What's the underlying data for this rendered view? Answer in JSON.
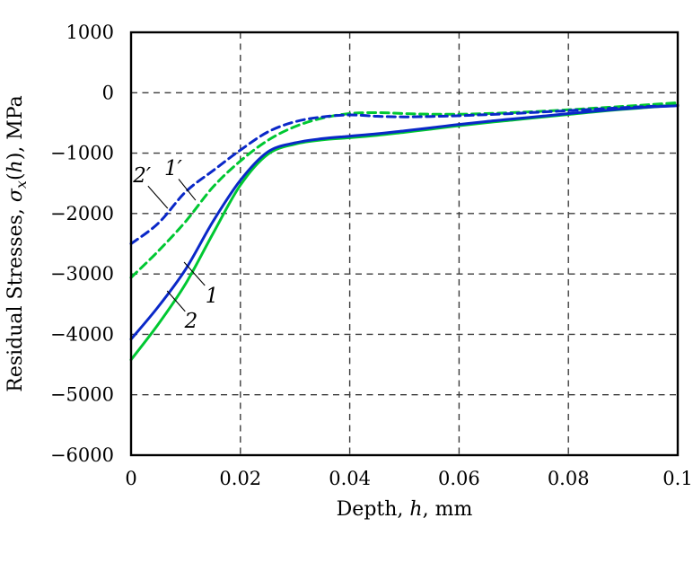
{
  "colors": {
    "blue": "#0a28c8",
    "green": "#00c832",
    "grid": "#3c3c3c",
    "frame": "#000000",
    "annotation": "#000000",
    "background": "#ffffff"
  },
  "chart_data": {
    "type": "line",
    "title": "",
    "xlabel": "Depth, h, mm",
    "ylabel": "Residual Stresses, σx(h), MPa",
    "xlabel_parts": [
      {
        "text": "Depth, "
      },
      {
        "text": "h",
        "italic": true
      },
      {
        "text": ", mm"
      }
    ],
    "ylabel_parts": [
      {
        "text": "Residual Stresses, "
      },
      {
        "text": "σ",
        "italic": true
      },
      {
        "text": "x",
        "italic": true,
        "sub": true
      },
      {
        "text": "("
      },
      {
        "text": "h",
        "italic": true
      },
      {
        "text": "), MPa"
      }
    ],
    "xlim": [
      0,
      0.1
    ],
    "ylim": [
      -6000,
      1000
    ],
    "grid": true,
    "legend": "none",
    "xticks": [
      {
        "v": 0,
        "label": "0"
      },
      {
        "v": 0.02,
        "label": "0.02"
      },
      {
        "v": 0.04,
        "label": "0.04"
      },
      {
        "v": 0.06,
        "label": "0.06"
      },
      {
        "v": 0.08,
        "label": "0.08"
      },
      {
        "v": 0.1,
        "label": "0.1"
      }
    ],
    "yticks": [
      {
        "v": 1000,
        "label": "1000"
      },
      {
        "v": 0,
        "label": "0"
      },
      {
        "v": -1000,
        "label": "−1000"
      },
      {
        "v": -2000,
        "label": "−2000"
      },
      {
        "v": -3000,
        "label": "−3000"
      },
      {
        "v": -4000,
        "label": "−4000"
      },
      {
        "v": -5000,
        "label": "−5000"
      },
      {
        "v": -6000,
        "label": "−6000"
      }
    ],
    "grid_x": [
      0.02,
      0.04,
      0.06,
      0.08
    ],
    "grid_y": [
      0,
      -1000,
      -2000,
      -3000,
      -4000,
      -5000
    ],
    "x": [
      0,
      0.005,
      0.01,
      0.015,
      0.02,
      0.025,
      0.03,
      0.035,
      0.04,
      0.045,
      0.05,
      0.055,
      0.06,
      0.065,
      0.07,
      0.075,
      0.08,
      0.085,
      0.09,
      0.095,
      0.1
    ],
    "series": [
      {
        "key": "curve-1-prime",
        "name": "1′",
        "color": "#00c832",
        "style": "dashed",
        "values": [
          -3060,
          -2620,
          -2130,
          -1560,
          -1130,
          -790,
          -560,
          -420,
          -345,
          -330,
          -345,
          -355,
          -355,
          -345,
          -328,
          -308,
          -283,
          -255,
          -226,
          -196,
          -165
        ]
      },
      {
        "key": "curve-2-prime",
        "name": "2′",
        "color": "#0a28c8",
        "style": "dashed",
        "values": [
          -2500,
          -2160,
          -1640,
          -1290,
          -950,
          -650,
          -480,
          -400,
          -368,
          -390,
          -400,
          -393,
          -380,
          -363,
          -343,
          -320,
          -296,
          -271,
          -247,
          -226,
          -210
        ]
      },
      {
        "key": "curve-1",
        "name": "1",
        "color": "#00c832",
        "style": "solid",
        "values": [
          -4420,
          -3830,
          -3160,
          -2330,
          -1530,
          -1020,
          -850,
          -780,
          -745,
          -705,
          -655,
          -600,
          -545,
          -495,
          -450,
          -405,
          -360,
          -315,
          -275,
          -240,
          -205
        ]
      },
      {
        "key": "curve-2",
        "name": "2",
        "color": "#0a28c8",
        "style": "solid",
        "values": [
          -4080,
          -3540,
          -2920,
          -2130,
          -1450,
          -980,
          -830,
          -760,
          -720,
          -680,
          -630,
          -578,
          -525,
          -478,
          -432,
          -390,
          -345,
          -305,
          -268,
          -235,
          -215
        ]
      }
    ],
    "annotations": [
      {
        "key": "label-2-prime",
        "text": "2′",
        "target": "curve-2-prime",
        "x": 0.002,
        "y": -1363,
        "leader": [
          [
            0.0031,
            -1545
          ],
          [
            0.0067,
            -1915
          ]
        ]
      },
      {
        "key": "label-1-prime",
        "text": "1′",
        "target": "curve-1-prime",
        "x": 0.0077,
        "y": -1244,
        "leader": [
          [
            0.0087,
            -1430
          ],
          [
            0.0118,
            -1780
          ]
        ]
      },
      {
        "key": "label-1",
        "text": "1",
        "target": "curve-1",
        "x": 0.0148,
        "y": -3354,
        "leader": [
          [
            0.0135,
            -3191
          ],
          [
            0.0097,
            -2804
          ]
        ]
      },
      {
        "key": "label-2",
        "text": "2",
        "target": "curve-2",
        "x": 0.011,
        "y": -3770,
        "leader": [
          [
            0.0099,
            -3620
          ],
          [
            0.0066,
            -3280
          ]
        ]
      }
    ]
  }
}
